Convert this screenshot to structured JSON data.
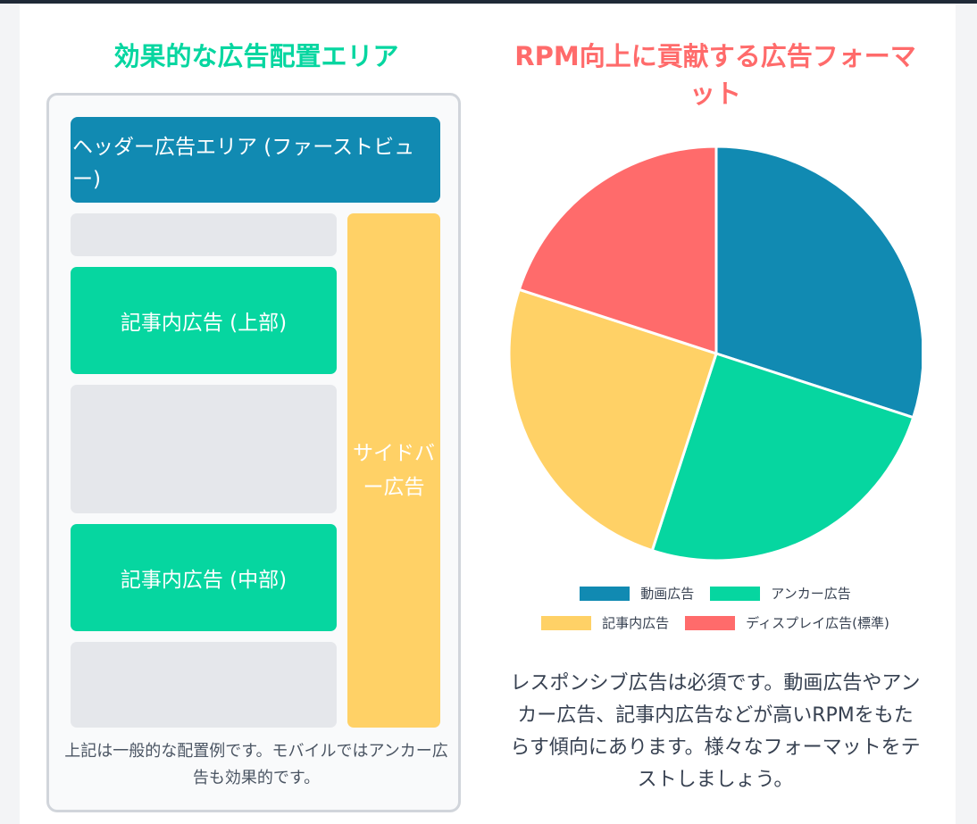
{
  "left_panel": {
    "title": "効果的な広告配置エリア",
    "header_ad": "ヘッダー広告エリア (ファーストビュー)",
    "inarticle_top": "記事内広告 (上部)",
    "inarticle_middle": "記事内広告 (中部)",
    "sidebar_ad": "サイドバー広告",
    "note": "上記は一般的な配置例です。モバイルではアンカー広告も効果的です。"
  },
  "right_panel": {
    "title": "RPM向上に貢献する広告フォーマット",
    "description": "レスポンシブ広告は必須です。動画広告やアンカー広告、記事内広告などが高いRPMをもたらす傾向にあります。様々なフォーマットをテストしましょう。"
  },
  "chart_data": {
    "type": "pie",
    "categories": [
      "動画広告",
      "アンカー広告",
      "記事内広告",
      "ディスプレイ広告(標準)"
    ],
    "values": [
      30,
      25,
      25,
      20
    ],
    "colors": [
      "#118ab2",
      "#06d6a0",
      "#ffd166",
      "#ff6b6b"
    ],
    "legend": "bottom"
  },
  "colors": {
    "accent_green": "#06d6a0",
    "accent_blue": "#118ab2",
    "accent_yellow": "#ffd166",
    "accent_red": "#ff6b6b"
  }
}
